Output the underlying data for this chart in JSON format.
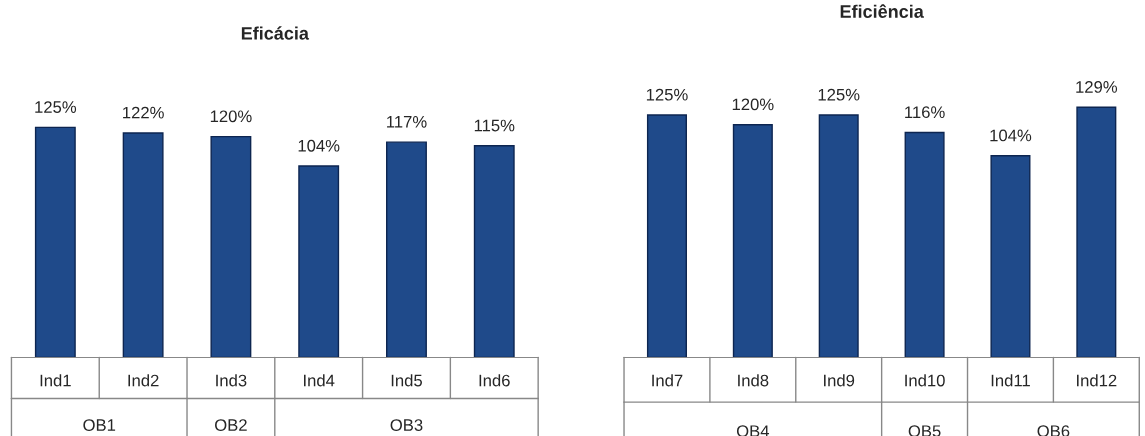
{
  "chart_data": [
    {
      "type": "bar",
      "title": "Eficácia",
      "categories": [
        "Ind1",
        "Ind2",
        "Ind3",
        "Ind4",
        "Ind5",
        "Ind6"
      ],
      "values": [
        125,
        122,
        120,
        104,
        117,
        115
      ],
      "value_labels": [
        "125%",
        "122%",
        "120%",
        "104%",
        "117%",
        "115%"
      ],
      "color": "#1f4a8a",
      "annotations": [
        "OB1",
        "OB2",
        "OB3"
      ]
    },
    {
      "type": "bar",
      "title": "Eficiência",
      "categories": [
        "Ind7",
        "Ind8",
        "Ind9",
        "Ind10",
        "Ind11",
        "Ind12"
      ],
      "values": [
        125,
        120,
        125,
        116,
        104,
        129
      ],
      "value_labels": [
        "125%",
        "120%",
        "125%",
        "116%",
        "104%",
        "129%"
      ],
      "color": "#1f4a8a",
      "annotations": [
        "OB4",
        "OB5",
        "OB6"
      ]
    }
  ]
}
